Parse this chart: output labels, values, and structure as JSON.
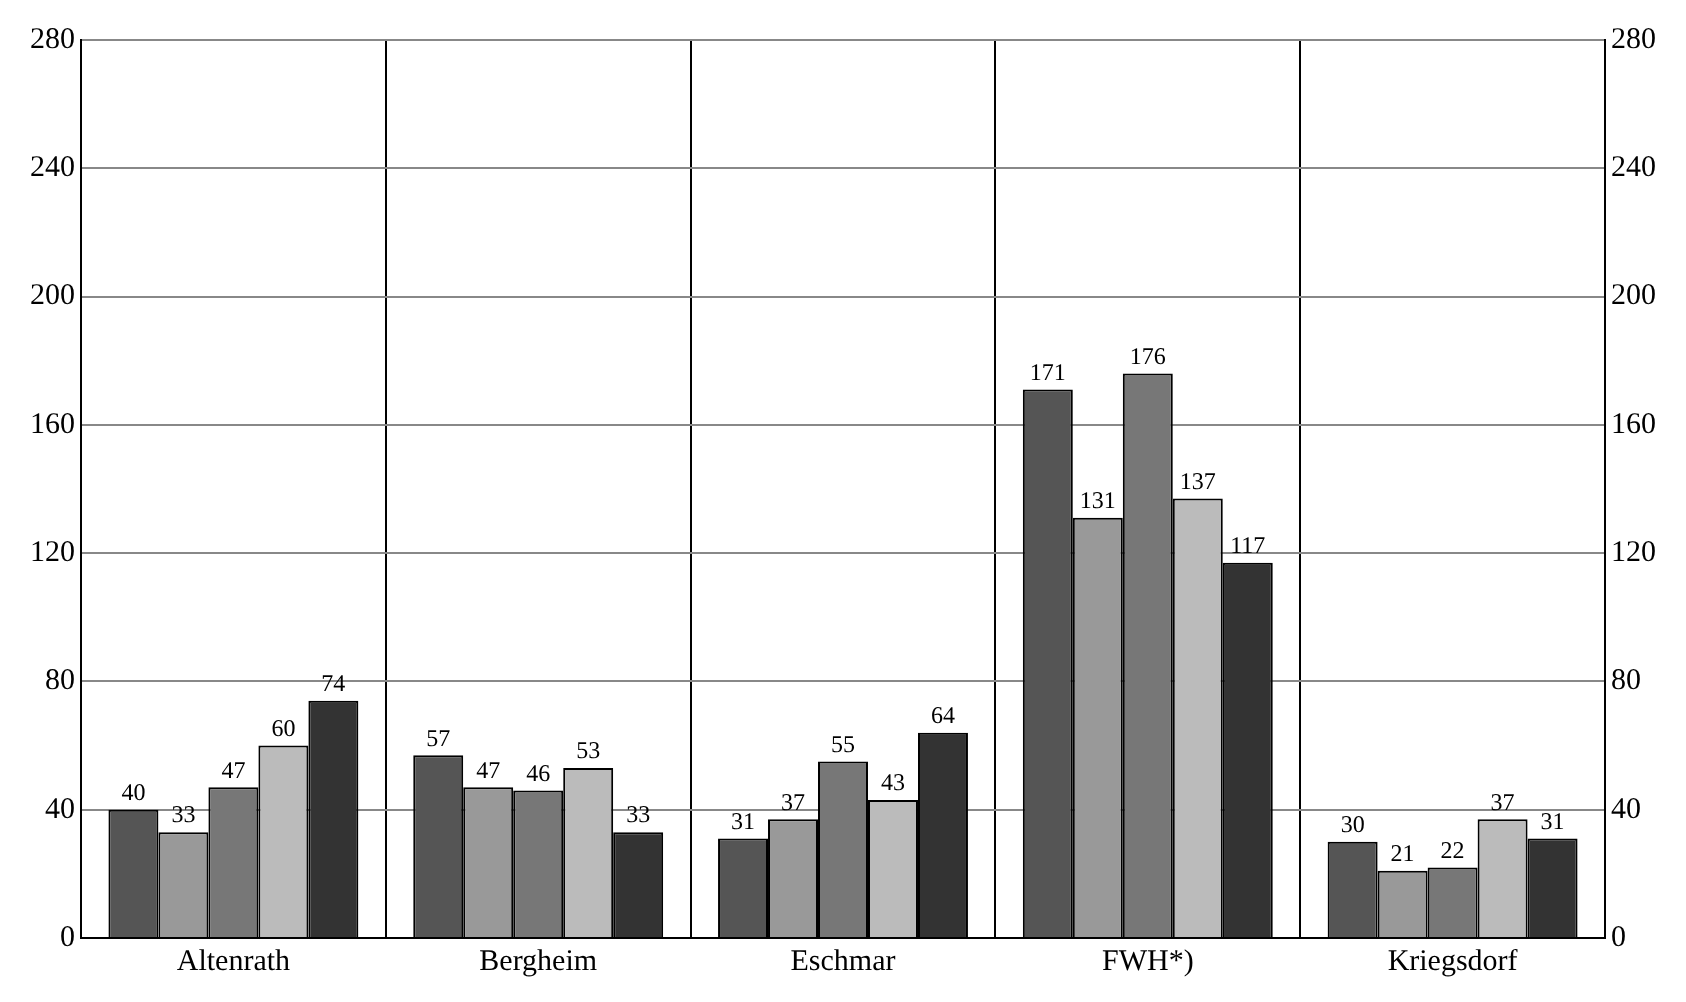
{
  "chart_data": {
    "type": "bar",
    "categories": [
      "Altenrath",
      "Bergheim",
      "Eschmar",
      "FWH*)",
      "Kriegsdorf"
    ],
    "series": [
      {
        "color": "#555555",
        "values": [
          40,
          57,
          31,
          171,
          30
        ]
      },
      {
        "color": "#999999",
        "values": [
          33,
          47,
          37,
          131,
          21
        ]
      },
      {
        "color": "#777777",
        "values": [
          47,
          46,
          55,
          176,
          22
        ]
      },
      {
        "color": "#bbbbbb",
        "values": [
          60,
          53,
          43,
          137,
          37
        ]
      },
      {
        "color": "#333333",
        "values": [
          74,
          33,
          64,
          117,
          31
        ]
      }
    ],
    "ylim": [
      0,
      280
    ],
    "yticks": [
      0,
      40,
      80,
      120,
      160,
      200,
      240,
      280
    ],
    "y2lim": [
      0,
      280
    ],
    "y2ticks": [
      0,
      40,
      80,
      120,
      160,
      200,
      240,
      280
    ],
    "grid": true,
    "legend": false,
    "data_labels": true
  }
}
